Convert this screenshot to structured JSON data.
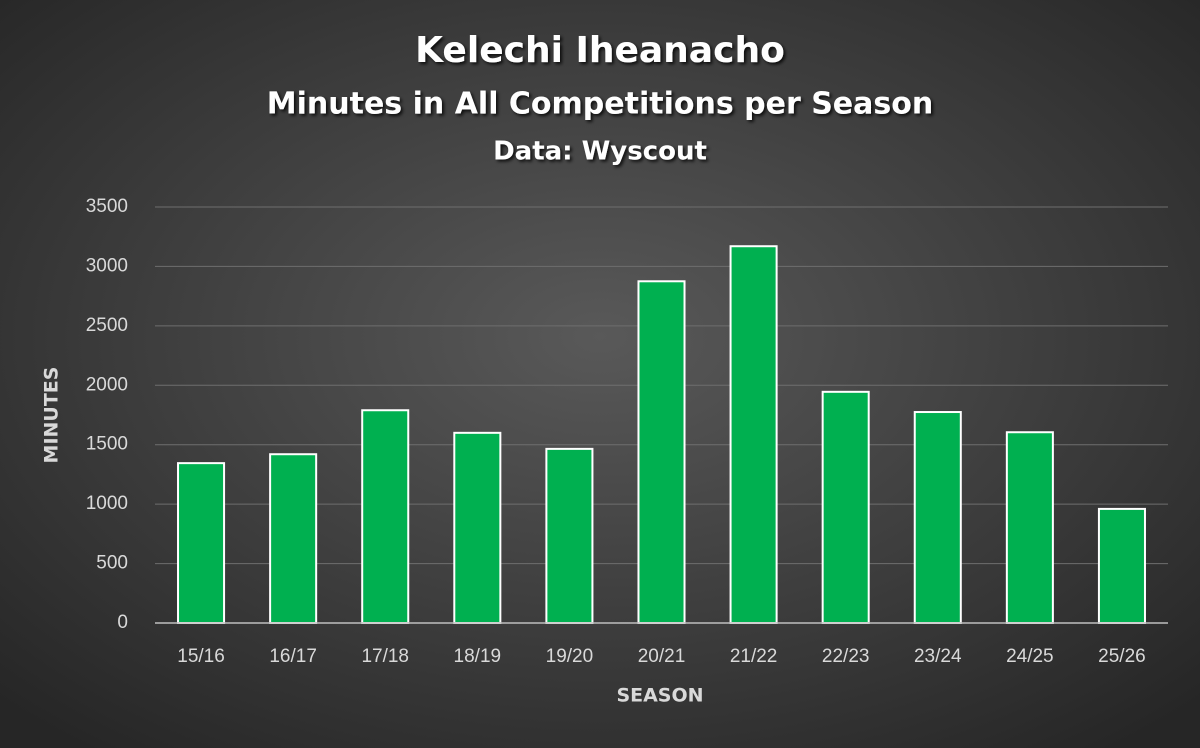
{
  "chart_data": {
    "type": "bar",
    "title": "Kelechi Iheanacho",
    "subtitle": "Minutes in All Competitions per Season",
    "source": "Data: Wyscout",
    "x_label": "SEASON",
    "y_label": "MINUTES",
    "categories": [
      "15/16",
      "16/17",
      "17/18",
      "18/19",
      "19/20",
      "20/21",
      "21/22",
      "22/23",
      "23/24",
      "24/25",
      "25/26"
    ],
    "values": [
      1345,
      1420,
      1790,
      1600,
      1465,
      2875,
      3170,
      1945,
      1775,
      1605,
      960
    ],
    "color": "#00b050",
    "ylim": [
      0,
      3500
    ],
    "yticks": [
      0,
      500,
      1000,
      1500,
      2000,
      2500,
      3000,
      3500
    ],
    "grid": true
  }
}
